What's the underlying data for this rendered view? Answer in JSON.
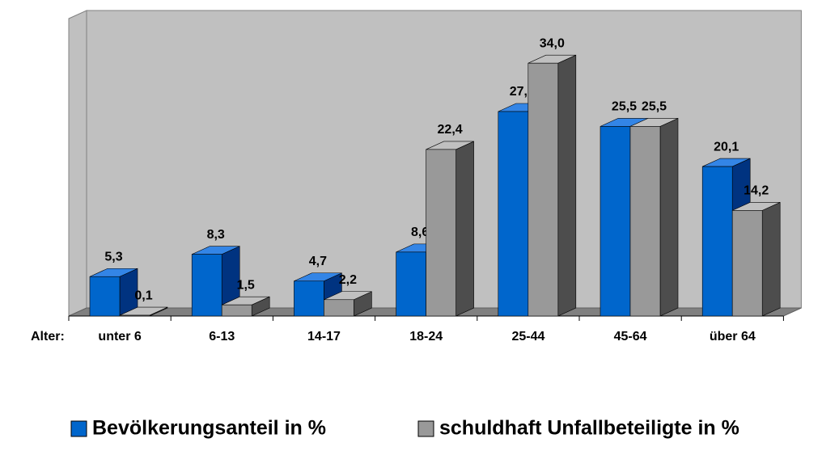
{
  "chart_data": {
    "type": "bar3d",
    "x_label": "Alter:",
    "categories": [
      "unter 6",
      "6-13",
      "14-17",
      "18-24",
      "25-44",
      "45-64",
      "über 64"
    ],
    "series": [
      {
        "name": "Bevölkerungsanteil in %",
        "color": "#0066cc",
        "values": [
          5.3,
          8.3,
          4.7,
          8.6,
          27.5,
          25.5,
          20.1
        ],
        "value_labels": [
          "5,3",
          "8,3",
          "4,7",
          "8,6",
          "27,5",
          "25,5",
          "20,1"
        ]
      },
      {
        "name": "schuldhaft Unfallbeteiligte in %",
        "color": "#999999",
        "values": [
          0.1,
          1.5,
          2.2,
          22.4,
          34.0,
          25.5,
          14.2
        ],
        "value_labels": [
          "0,1",
          "1,5",
          "2,2",
          "22,4",
          "34,0",
          "25,5",
          "14,2"
        ]
      }
    ],
    "ylim": [
      0,
      40
    ],
    "legend": "bottom"
  }
}
